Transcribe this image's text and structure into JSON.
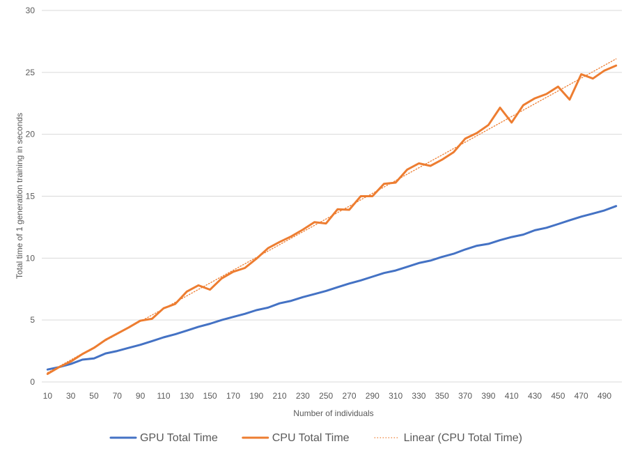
{
  "chart_data": {
    "type": "line",
    "title": "",
    "xlabel": "Number of individuals",
    "ylabel": "Total time of 1 generation training in seconds",
    "ylim": [
      0,
      30
    ],
    "yticks": [
      0,
      5,
      10,
      15,
      20,
      25,
      30
    ],
    "x": [
      10,
      20,
      30,
      40,
      50,
      60,
      70,
      80,
      90,
      100,
      110,
      120,
      130,
      140,
      150,
      160,
      170,
      180,
      190,
      200,
      210,
      220,
      230,
      240,
      250,
      260,
      270,
      280,
      290,
      300,
      310,
      320,
      330,
      340,
      350,
      360,
      370,
      380,
      390,
      400,
      410,
      420,
      430,
      440,
      450,
      460,
      470,
      480,
      490,
      500
    ],
    "xtick_labels": [
      "10",
      "30",
      "50",
      "70",
      "90",
      "110",
      "130",
      "150",
      "170",
      "190",
      "210",
      "230",
      "250",
      "270",
      "290",
      "310",
      "330",
      "350",
      "370",
      "390",
      "410",
      "430",
      "450",
      "470",
      "490"
    ],
    "grid": true,
    "legend_position": "bottom",
    "series": [
      {
        "name": "GPU Total Time",
        "color": "#4472C4",
        "style": "solid",
        "values": [
          1.0,
          1.2,
          1.45,
          1.8,
          1.9,
          2.3,
          2.5,
          2.75,
          3.0,
          3.3,
          3.6,
          3.85,
          4.15,
          4.45,
          4.7,
          5.0,
          5.25,
          5.5,
          5.8,
          6.0,
          6.35,
          6.55,
          6.85,
          7.1,
          7.35,
          7.65,
          7.95,
          8.2,
          8.5,
          8.8,
          9.0,
          9.3,
          9.6,
          9.8,
          10.1,
          10.35,
          10.7,
          11.0,
          11.15,
          11.45,
          11.7,
          11.9,
          12.25,
          12.45,
          12.75,
          13.05,
          13.35,
          13.6,
          13.85,
          14.2
        ]
      },
      {
        "name": "CPU Total Time",
        "color": "#ED7D31",
        "style": "solid",
        "values": [
          0.65,
          1.2,
          1.65,
          2.25,
          2.75,
          3.4,
          3.9,
          4.4,
          4.95,
          5.1,
          5.95,
          6.3,
          7.3,
          7.8,
          7.45,
          8.35,
          8.9,
          9.2,
          9.95,
          10.8,
          11.3,
          11.75,
          12.3,
          12.9,
          12.8,
          13.95,
          13.9,
          15.0,
          15.0,
          16.0,
          16.1,
          17.15,
          17.65,
          17.45,
          17.95,
          18.55,
          19.65,
          20.1,
          20.75,
          22.15,
          20.95,
          22.35,
          22.9,
          23.25,
          23.85,
          22.8,
          24.85,
          24.5,
          25.15,
          25.55
        ]
      },
      {
        "name": "Linear (CPU Total Time)",
        "color": "#ED7D31",
        "style": "dotted",
        "trend_of": "CPU Total Time"
      }
    ]
  }
}
